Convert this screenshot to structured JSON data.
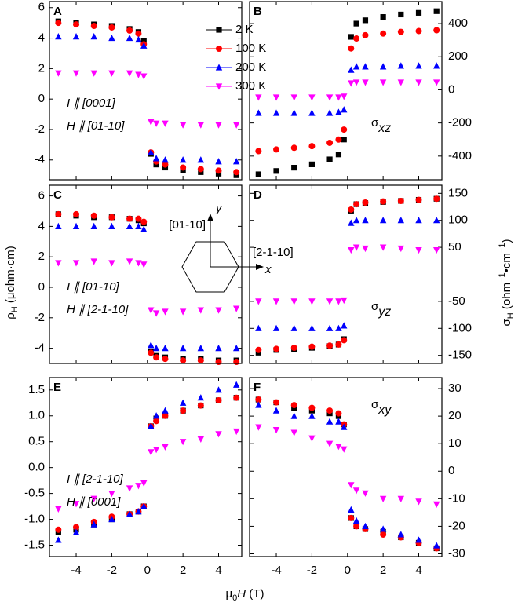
{
  "figure": {
    "xlabel": {
      "pre": "μ",
      "sub": "0",
      "var": "H",
      "unit": " (T)"
    },
    "ylabel": {
      "symbol": "ρ",
      "sub": "H",
      "unit": " (μohm·cm)"
    },
    "y2label": {
      "symbol": "σ",
      "sub": "H",
      "unit": " (ohm",
      "sup1": "−1",
      "mid": "•cm",
      "sup2": "−1",
      "end": ")"
    },
    "legend": [
      {
        "name": "2 K",
        "color": "#000000",
        "marker": "square"
      },
      {
        "name": "100 K",
        "color": "#ff0000",
        "marker": "circle"
      },
      {
        "name": "200 K",
        "color": "#0000ff",
        "marker": "triangle-up"
      },
      {
        "name": "300 K",
        "color": "#ff00ff",
        "marker": "triangle-down"
      }
    ],
    "inset": {
      "y_axis": "y",
      "x_axis": "x",
      "y_direction": "[01-10]",
      "x_direction": "[2-1-10]"
    }
  },
  "chart_data": [
    {
      "type": "scatter",
      "panel": "A",
      "y_axis_side": "left",
      "annotations": [
        "I ∥ [0001]",
        "H ∥ [01-10]"
      ],
      "xlim": [
        -5.5,
        5.3
      ],
      "xticks": [
        -4,
        -2,
        0,
        2,
        4
      ],
      "ylim": [
        -5.3,
        6.4
      ],
      "yticks": [
        -4,
        -2,
        0,
        2,
        4,
        6
      ],
      "x": [
        -5,
        -4,
        -3,
        -2,
        -1,
        -0.5,
        -0.2,
        0.2,
        0.5,
        1,
        2,
        3,
        4,
        5
      ],
      "series": [
        {
          "values": [
            5.1,
            5.0,
            4.9,
            4.8,
            4.6,
            4.4,
            3.8,
            -3.6,
            -4.3,
            -4.5,
            -4.7,
            -4.8,
            -4.9,
            -5.0
          ]
        },
        {
          "values": [
            5.0,
            4.9,
            4.8,
            4.7,
            4.5,
            4.3,
            3.6,
            -3.5,
            -4.1,
            -4.3,
            -4.5,
            -4.6,
            -4.7,
            -4.8
          ]
        },
        {
          "values": [
            4.1,
            4.1,
            4.1,
            4.0,
            4.0,
            3.9,
            3.5,
            -3.5,
            -3.9,
            -4.0,
            -4.0,
            -4.0,
            -4.1,
            -4.1
          ]
        },
        {
          "values": [
            1.7,
            1.7,
            1.7,
            1.7,
            1.7,
            1.6,
            1.5,
            -1.5,
            -1.6,
            -1.6,
            -1.7,
            -1.7,
            -1.7,
            -1.7
          ]
        }
      ]
    },
    {
      "type": "scatter",
      "panel": "B",
      "y_axis_side": "right",
      "component": {
        "symbol": "σ",
        "sub": "xz"
      },
      "xlim": [
        -5.5,
        5.3
      ],
      "xticks": [
        -4,
        -2,
        0,
        2,
        4
      ],
      "ylim": [
        -543,
        533
      ],
      "yticks": [
        -400,
        -200,
        0,
        200,
        400
      ],
      "x": [
        -5,
        -4,
        -3,
        -2,
        -1,
        -0.5,
        -0.2,
        0.2,
        0.5,
        1,
        2,
        3,
        4,
        5
      ],
      "series": [
        {
          "values": [
            -510,
            -490,
            -470,
            -450,
            -420,
            -390,
            -300,
            320,
            400,
            420,
            440,
            455,
            465,
            475
          ]
        },
        {
          "values": [
            -370,
            -360,
            -350,
            -340,
            -320,
            -300,
            -240,
            250,
            310,
            330,
            340,
            350,
            355,
            360
          ]
        },
        {
          "values": [
            -140,
            -140,
            -140,
            -140,
            -140,
            -135,
            -120,
            120,
            140,
            140,
            140,
            145,
            145,
            145
          ]
        },
        {
          "values": [
            -45,
            -45,
            -45,
            -45,
            -45,
            -45,
            -40,
            40,
            45,
            45,
            45,
            45,
            45,
            45
          ]
        }
      ]
    },
    {
      "type": "scatter",
      "panel": "C",
      "y_axis_side": "left",
      "annotations": [
        "I ∥ [01-10]",
        "H ∥ [2-1-10]"
      ],
      "xlim": [
        -5.5,
        5.3
      ],
      "xticks": [
        -4,
        -2,
        0,
        2,
        4
      ],
      "ylim": [
        -5.0,
        6.7
      ],
      "yticks": [
        -4,
        -2,
        0,
        2,
        4,
        6
      ],
      "x": [
        -5,
        -4,
        -3,
        -2,
        -1,
        -0.5,
        -0.2,
        0.2,
        0.5,
        1,
        2,
        3,
        4,
        5
      ],
      "series": [
        {
          "values": [
            4.8,
            4.7,
            4.6,
            4.6,
            4.5,
            4.4,
            4.2,
            -4.2,
            -4.5,
            -4.6,
            -4.7,
            -4.7,
            -4.8,
            -4.8
          ]
        },
        {
          "values": [
            4.8,
            4.8,
            4.7,
            4.6,
            4.5,
            4.5,
            4.3,
            -4.3,
            -4.6,
            -4.7,
            -4.8,
            -4.8,
            -4.9,
            -4.9
          ]
        },
        {
          "values": [
            4.0,
            4.0,
            4.0,
            4.0,
            4.0,
            4.0,
            3.8,
            -3.8,
            -4.0,
            -4.0,
            -4.0,
            -4.0,
            -4.0,
            -4.0
          ]
        },
        {
          "values": [
            1.6,
            1.6,
            1.7,
            1.6,
            1.7,
            1.6,
            1.5,
            -1.5,
            -1.7,
            -1.6,
            -1.6,
            -1.5,
            -1.5,
            -1.4
          ]
        }
      ]
    },
    {
      "type": "scatter",
      "panel": "D",
      "y_axis_side": "right",
      "component": {
        "symbol": "σ",
        "sub": "yz"
      },
      "xlim": [
        -5.5,
        5.3
      ],
      "xticks": [
        -4,
        -2,
        0,
        2,
        4
      ],
      "ylim": [
        -165,
        165
      ],
      "yticks": [
        -150,
        -100,
        -50,
        50,
        100,
        150
      ],
      "x": [
        -5,
        -4,
        -3,
        -2,
        -1,
        -0.5,
        -0.2,
        0.2,
        0.5,
        1,
        2,
        3,
        4,
        5
      ],
      "series": [
        {
          "values": [
            -145,
            -140,
            -138,
            -136,
            -133,
            -130,
            -120,
            118,
            130,
            132,
            134,
            136,
            138,
            140
          ]
        },
        {
          "values": [
            -140,
            -138,
            -136,
            -134,
            -132,
            -130,
            -122,
            120,
            130,
            133,
            135,
            136,
            138,
            140
          ]
        },
        {
          "values": [
            -100,
            -100,
            -100,
            -100,
            -100,
            -100,
            -95,
            95,
            100,
            100,
            100,
            100,
            100,
            100
          ]
        },
        {
          "values": [
            -50,
            -50,
            -50,
            -50,
            -50,
            -50,
            -48,
            45,
            50,
            48,
            50,
            48,
            45,
            45
          ]
        }
      ]
    },
    {
      "type": "scatter",
      "panel": "E",
      "y_axis_side": "left",
      "annotations": [
        "I ∥ [2-1-10]",
        "H ∥ [0001]"
      ],
      "xlim": [
        -5.5,
        5.3
      ],
      "xticks": [
        -4,
        -2,
        0,
        2,
        4
      ],
      "ylim": [
        -1.72,
        1.74
      ],
      "yticks": [
        -1.5,
        {
          "value": -1,
          "label": "-1.0"
        },
        -0.5,
        {
          "value": 0,
          "label": "0.0"
        },
        0.5,
        {
          "value": 1,
          "label": "1.0"
        },
        1.5
      ],
      "x": [
        -5,
        -4,
        -3,
        -2,
        -1,
        -0.5,
        -0.2,
        0.2,
        0.5,
        1,
        2,
        3,
        4,
        5
      ],
      "series": [
        {
          "values": [
            -1.25,
            -1.2,
            -1.1,
            -1.0,
            -0.9,
            -0.85,
            -0.75,
            0.8,
            0.95,
            1.0,
            1.1,
            1.2,
            1.3,
            1.35
          ]
        },
        {
          "values": [
            -1.2,
            -1.15,
            -1.05,
            -0.95,
            -0.9,
            -0.85,
            -0.75,
            0.8,
            0.9,
            1.0,
            1.1,
            1.2,
            1.3,
            1.35
          ]
        },
        {
          "values": [
            -1.4,
            -1.25,
            -1.1,
            -1.0,
            -0.9,
            -0.85,
            -0.75,
            0.8,
            1.0,
            1.1,
            1.25,
            1.35,
            1.5,
            1.6
          ]
        },
        {
          "values": [
            -0.8,
            -0.7,
            -0.6,
            -0.5,
            -0.4,
            -0.35,
            -0.3,
            0.3,
            0.35,
            0.4,
            0.5,
            0.55,
            0.65,
            0.7
          ]
        }
      ]
    },
    {
      "type": "scatter",
      "panel": "F",
      "y_axis_side": "right",
      "component": {
        "symbol": "σ",
        "sub": "xy"
      },
      "xlim": [
        -5.5,
        5.3
      ],
      "xticks": [
        -4,
        -2,
        0,
        2,
        4
      ],
      "ylim": [
        -31,
        34
      ],
      "yticks": [
        -30,
        -20,
        -10,
        0,
        10,
        20,
        30
      ],
      "x": [
        -5,
        -4,
        -3,
        -2,
        -1,
        -0.5,
        -0.2,
        0.2,
        0.5,
        1,
        2,
        3,
        4,
        5
      ],
      "series": [
        {
          "values": [
            26,
            25,
            23,
            22,
            21,
            20,
            17,
            -17,
            -20,
            -21,
            -22,
            -24,
            -26,
            -28
          ]
        },
        {
          "values": [
            26,
            25,
            24,
            23,
            22,
            21,
            17,
            -17,
            -20,
            -21,
            -23,
            -24,
            -26,
            -28
          ]
        },
        {
          "values": [
            24,
            22,
            20,
            20,
            18,
            18,
            16,
            -14,
            -18,
            -20,
            -21,
            -23,
            -25,
            -27
          ]
        },
        {
          "values": [
            16,
            15,
            14,
            12,
            10,
            9,
            8,
            -5,
            -7,
            -8,
            -10,
            -10,
            -11,
            -12
          ]
        }
      ]
    }
  ]
}
